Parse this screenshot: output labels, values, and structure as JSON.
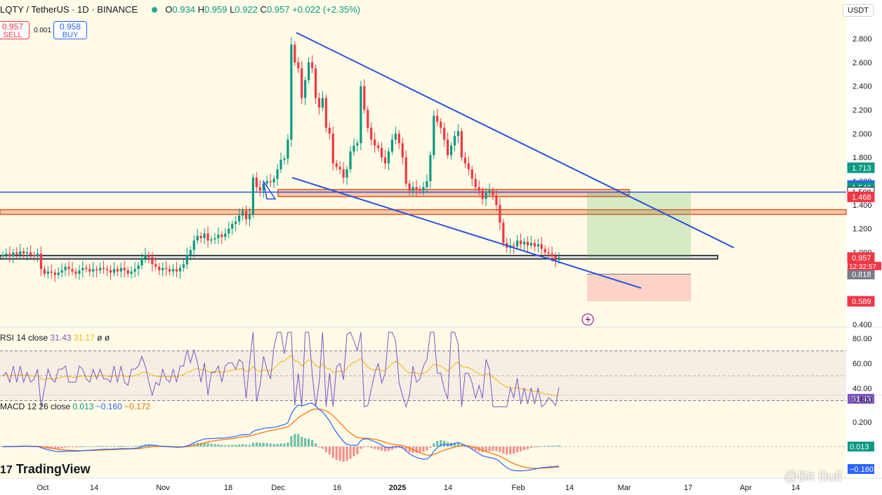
{
  "header": {
    "symbol": "LQTY / TetherUS · 1D · BINANCE",
    "o_label": "O",
    "o": "0.934",
    "h_label": "H",
    "h": "0.959",
    "l_label": "L",
    "l": "0.922",
    "c_label": "C",
    "c": "0.957",
    "change": "+0.022 (+2.35%)"
  },
  "trade": {
    "sell_price": "0.957",
    "sell_label": "SELL",
    "spread": "0.001",
    "buy_price": "0.958",
    "buy_label": "BUY"
  },
  "currency": "USDT",
  "rsi_legend": {
    "label": "RSI 14 close",
    "v1": "31.43",
    "v2": "31.17",
    "v3": "ø",
    "v4": "ø"
  },
  "macd_legend": {
    "label": "MACD 12 26 close",
    "v1": "0.013",
    "v2": "−0.160",
    "v3": "−0.172"
  },
  "logo": "TradingView",
  "watermark": "@Bit Bull",
  "colors": {
    "up": "#089981",
    "down": "#f23645",
    "trend": "#2a52e0",
    "zone": "#f5c7a7",
    "zone_border": "#e0592a",
    "bg": "#fffbe6"
  },
  "chart_data": {
    "type": "candlestick",
    "main_price_ticks": [
      "2.800",
      "2.600",
      "2.400",
      "2.200",
      "2.000",
      "1.800",
      "1.600",
      "1.400",
      "1.200",
      "1.000",
      "0.400"
    ],
    "main_price_tick_values": [
      2.8,
      2.6,
      2.4,
      2.2,
      2.0,
      1.8,
      1.6,
      1.4,
      1.2,
      1.0,
      0.4
    ],
    "x_ticks": [
      "Oct",
      "14",
      "Nov",
      "18",
      "Dec",
      "16",
      "2025",
      "14",
      "Feb",
      "14",
      "Mar",
      "17",
      "Apr",
      "14"
    ],
    "price_labels": [
      {
        "text": "1.713",
        "color": "#089981",
        "value": 1.713
      },
      {
        "text": "1.563",
        "color": "#2962ff",
        "value": 1.563
      },
      {
        "text": "1.546",
        "color": "#089981",
        "value": 1.546
      },
      {
        "text": "1.508",
        "color": "#ffffff",
        "value": 1.508
      },
      {
        "text": "1.468",
        "color": "#f23645",
        "value": 1.468
      },
      {
        "text": "0.957",
        "color": "#f23645",
        "value": 0.957
      },
      {
        "text": "0.818",
        "color": "#787b86",
        "value": 0.818
      },
      {
        "text": "0.589",
        "color": "#f23645",
        "value": 0.589
      }
    ],
    "countdown": "12:32:57",
    "candles_close": [
      0.98,
      0.99,
      0.97,
      1.0,
      0.98,
      1.01,
      0.99,
      1.0,
      0.98,
      0.97,
      0.99,
      0.86,
      0.82,
      0.84,
      0.83,
      0.81,
      0.83,
      0.85,
      0.88,
      0.86,
      0.84,
      0.82,
      0.85,
      0.87,
      0.86,
      0.84,
      0.86,
      0.85,
      0.87,
      0.86,
      0.85,
      0.83,
      0.86,
      0.84,
      0.87,
      0.85,
      0.82,
      0.84,
      0.86,
      0.89,
      0.95,
      0.98,
      0.96,
      0.9,
      0.88,
      0.85,
      0.87,
      0.86,
      0.84,
      0.86,
      0.84,
      0.87,
      0.9,
      0.98,
      1.02,
      1.1,
      1.14,
      1.12,
      1.16,
      1.1,
      1.11,
      1.12,
      1.15,
      1.13,
      1.16,
      1.2,
      1.24,
      1.26,
      1.31,
      1.35,
      1.28,
      1.32,
      1.63,
      1.55,
      1.52,
      1.58,
      1.6,
      1.59,
      1.62,
      1.7,
      1.78,
      1.79,
      1.95,
      2.75,
      2.6,
      2.55,
      2.3,
      2.45,
      2.6,
      2.55,
      2.3,
      2.22,
      2.3,
      2.05,
      2.0,
      1.75,
      1.72,
      1.7,
      1.63,
      1.7,
      1.85,
      1.9,
      1.92,
      2.4,
      2.2,
      2.05,
      1.95,
      1.9,
      1.88,
      1.8,
      1.75,
      1.85,
      1.95,
      2.0,
      1.92,
      1.8,
      1.58,
      1.52,
      1.55,
      1.53,
      1.52,
      1.55,
      1.6,
      1.82,
      2.15,
      2.1,
      2.05,
      1.95,
      1.82,
      1.9,
      1.98,
      2.02,
      1.8,
      1.75,
      1.7,
      1.62,
      1.55,
      1.52,
      1.45,
      1.5,
      1.52,
      1.48,
      1.4,
      1.25,
      1.08,
      1.04,
      1.06,
      1.05,
      1.1,
      1.07,
      1.09,
      1.06,
      1.08,
      1.05,
      1.07,
      1.03,
      1.0,
      0.99,
      0.97,
      0.935,
      0.957
    ],
    "rsi": {
      "value": 31.43,
      "ma": 31.17,
      "ticks": [
        "80.00",
        "60.00",
        "40.00"
      ],
      "tick_values": [
        80,
        60,
        40
      ],
      "bands": [
        70,
        30
      ]
    },
    "macd": {
      "macd": -0.16,
      "signal": -0.172,
      "hist": 0.013,
      "ticks": [
        "0.400",
        "0.200"
      ],
      "tick_values": [
        0.4,
        0.2
      ],
      "labels": [
        {
          "text": "0.013",
          "color": "#089981"
        },
        {
          "text": "−0.160",
          "color": "#2962ff"
        }
      ]
    }
  }
}
